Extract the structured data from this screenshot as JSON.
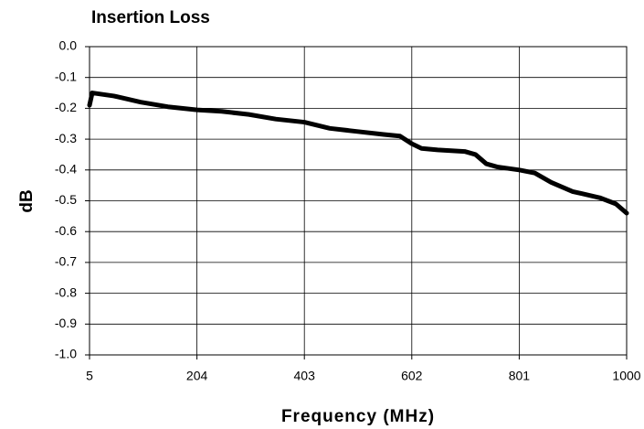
{
  "chart_data": {
    "type": "line",
    "title": "Insertion Loss",
    "x_label": "Frequency (MHz)",
    "y_label": "dB",
    "series": [
      {
        "name": "Insertion Loss",
        "color": "#000000",
        "x": [
          5,
          10,
          50,
          100,
          150,
          204,
          250,
          300,
          350,
          403,
          450,
          500,
          550,
          580,
          602,
          620,
          650,
          700,
          720,
          740,
          760,
          801,
          830,
          860,
          900,
          950,
          980,
          1000
        ],
        "values": [
          -0.19,
          -0.15,
          -0.16,
          -0.18,
          -0.195,
          -0.205,
          -0.21,
          -0.22,
          -0.235,
          -0.245,
          -0.265,
          -0.275,
          -0.285,
          -0.29,
          -0.315,
          -0.33,
          -0.335,
          -0.34,
          -0.35,
          -0.38,
          -0.39,
          -0.4,
          -0.41,
          -0.44,
          -0.47,
          -0.49,
          -0.51,
          -0.54
        ]
      }
    ],
    "xlim": [
      5,
      1000
    ],
    "xticks": [
      5,
      204,
      403,
      602,
      801,
      1000
    ],
    "ylim": [
      -1,
      0
    ],
    "yticks": [
      {
        "value": 0,
        "label": "0.0"
      },
      -0.1,
      -0.2,
      -0.3,
      -0.4,
      -0.5,
      -0.6,
      -0.7,
      -0.8,
      -0.9,
      {
        "value": -1,
        "label": "-1.0"
      }
    ],
    "grid": true
  }
}
